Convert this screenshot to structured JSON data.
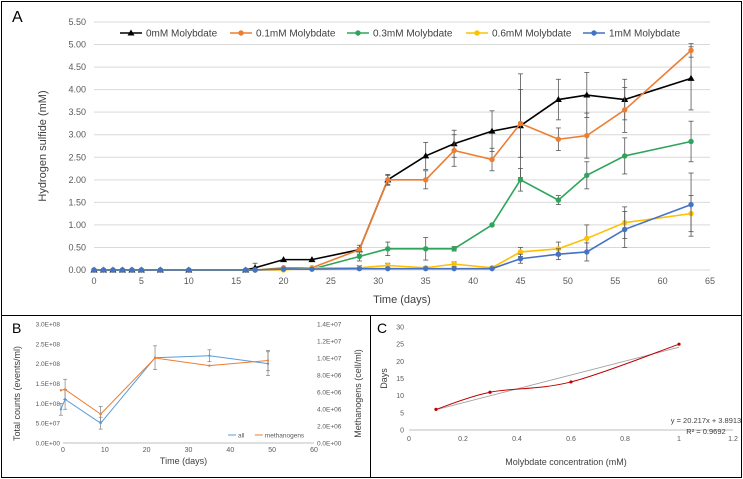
{
  "panels": {
    "A": {
      "letter": "A"
    },
    "B": {
      "letter": "B"
    },
    "C": {
      "letter": "C"
    }
  },
  "chart_data": [
    {
      "id": "A",
      "type": "line",
      "xlabel": "Time (days)",
      "ylabel": "Hydrogen sulfide (mM)",
      "xlim": [
        0,
        65
      ],
      "ylim": [
        0,
        5.5
      ],
      "xticks": [
        0,
        5,
        10,
        15,
        20,
        25,
        30,
        35,
        40,
        45,
        50,
        55,
        60,
        65
      ],
      "yticks": [
        0,
        0.5,
        1,
        1.5,
        2,
        2.5,
        3,
        3.5,
        4,
        4.5,
        5,
        5.5
      ],
      "ytick_labels": [
        "0.00",
        "0.50",
        "1.00",
        "1.50",
        "2.00",
        "2.50",
        "3.00",
        "3.50",
        "4.00",
        "4.50",
        "5.00",
        "5.50"
      ],
      "grid": "horizontal",
      "legend": "top",
      "series": [
        {
          "name": "0mM Molybdate",
          "color": "#000000",
          "marker": "triangle",
          "x": [
            0,
            1,
            2,
            3,
            4,
            5,
            7,
            10,
            16,
            17,
            20,
            23,
            28,
            31,
            35,
            38,
            42,
            45,
            49,
            52,
            56,
            63
          ],
          "y": [
            0,
            0,
            0,
            0,
            0,
            0,
            0,
            0,
            0,
            0.05,
            0.23,
            0.23,
            0.45,
            2.0,
            2.53,
            2.8,
            3.08,
            3.2,
            3.78,
            3.88,
            3.78,
            4.25
          ],
          "err": [
            0,
            0,
            0,
            0,
            0,
            0,
            0,
            0,
            0,
            0.1,
            0,
            0,
            0.1,
            0.1,
            0.3,
            0.3,
            0.45,
            1.15,
            0.45,
            0.5,
            0.45,
            0.7
          ]
        },
        {
          "name": "0.1mM Molybdate",
          "color": "#ED7D31",
          "marker": "circle",
          "x": [
            0,
            1,
            2,
            3,
            4,
            5,
            7,
            10,
            16,
            17,
            20,
            23,
            28,
            31,
            35,
            38,
            42,
            45,
            49,
            52,
            56,
            63
          ],
          "y": [
            0,
            0,
            0,
            0,
            0,
            0,
            0,
            0,
            0,
            0,
            0.05,
            0.05,
            0.45,
            2.0,
            2.0,
            2.65,
            2.45,
            3.25,
            2.9,
            2.98,
            3.55,
            4.87
          ],
          "err": [
            0,
            0,
            0,
            0,
            0,
            0,
            0,
            0,
            0,
            0,
            0,
            0,
            0.05,
            0.12,
            0.2,
            0.35,
            0.25,
            0.75,
            0.25,
            0.5,
            0.5,
            0.15
          ]
        },
        {
          "name": "0.3mM Molybdate",
          "color": "#2EA55A",
          "marker": "circle",
          "x": [
            0,
            1,
            2,
            3,
            4,
            5,
            7,
            10,
            16,
            17,
            20,
            23,
            28,
            31,
            35,
            38,
            42,
            45,
            49,
            52,
            56,
            63
          ],
          "y": [
            0,
            0,
            0,
            0,
            0,
            0,
            0,
            0,
            0,
            0,
            0.02,
            0.02,
            0.3,
            0.47,
            0.47,
            0.47,
            1.0,
            2.0,
            1.55,
            2.1,
            2.53,
            2.85
          ],
          "err": [
            0,
            0,
            0,
            0,
            0,
            0,
            0,
            0,
            0,
            0,
            0,
            0,
            0.1,
            0.15,
            0.25,
            0.05,
            0,
            0.25,
            0.1,
            0.3,
            0.4,
            0.45
          ]
        },
        {
          "name": "0.6mM Molybdate",
          "color": "#FFC000",
          "marker": "circle",
          "x": [
            0,
            1,
            2,
            3,
            4,
            5,
            7,
            10,
            16,
            17,
            20,
            23,
            28,
            31,
            35,
            38,
            42,
            45,
            49,
            52,
            56,
            63
          ],
          "y": [
            0,
            0,
            0,
            0,
            0,
            0,
            0,
            0,
            0,
            0,
            0,
            0.05,
            0.05,
            0.1,
            0.05,
            0.13,
            0.05,
            0.4,
            0.47,
            0.7,
            1.05,
            1.25
          ],
          "err": [
            0,
            0,
            0,
            0,
            0,
            0,
            0,
            0,
            0,
            0,
            0,
            0,
            0.05,
            0.05,
            0.03,
            0.05,
            0.03,
            0.1,
            0.15,
            0.3,
            0.35,
            0.4
          ]
        },
        {
          "name": "1mM Molybdate",
          "color": "#4472C4",
          "marker": "circle",
          "x": [
            0,
            1,
            2,
            3,
            4,
            5,
            7,
            10,
            16,
            17,
            20,
            23,
            28,
            31,
            35,
            38,
            42,
            45,
            49,
            52,
            56,
            63
          ],
          "y": [
            0,
            0,
            0,
            0,
            0,
            0,
            0,
            0,
            0,
            0,
            0.02,
            0.02,
            0.03,
            0.03,
            0.03,
            0.03,
            0.03,
            0.25,
            0.35,
            0.4,
            0.9,
            1.45
          ],
          "err": [
            0,
            0,
            0,
            0,
            0,
            0,
            0,
            0,
            0,
            0,
            0,
            0,
            0,
            0,
            0,
            0,
            0,
            0.1,
            0.12,
            0.2,
            0.4,
            0.7
          ]
        }
      ]
    },
    {
      "id": "B",
      "type": "line",
      "xlabel": "Time (days)",
      "ylabel": "Total counts (events/ml)",
      "y2label": "Methanogens (cell/ml)",
      "xlim": [
        0,
        60
      ],
      "ylim": [
        0,
        300000000
      ],
      "y2lim": [
        0,
        14000000
      ],
      "xticks": [
        0,
        10,
        20,
        30,
        40,
        50,
        60
      ],
      "yticks": [
        0,
        50000000,
        100000000,
        150000000,
        200000000,
        250000000,
        300000000
      ],
      "ytick_labels": [
        "0.0E+00",
        "5.0E+07",
        "1.0E+08",
        "1.5E+08",
        "2.0E+08",
        "2.5E+08",
        "3.0E+08"
      ],
      "y2ticks": [
        0,
        2000000,
        4000000,
        6000000,
        8000000,
        10000000,
        12000000,
        14000000
      ],
      "y2tick_labels": [
        "0.0E+00",
        "2.0E+06",
        "4.0E+06",
        "6.0E+06",
        "8.0E+06",
        "1.0E+07",
        "1.2E+07",
        "1.4E+07"
      ],
      "grid": "none",
      "legend": "bottom-right",
      "series": [
        {
          "name": "all",
          "color": "#5B9BD5",
          "axis": "left",
          "x": [
            -0.5,
            0.5,
            9,
            22,
            35,
            49
          ],
          "y": [
            85000000,
            110000000,
            50000000,
            215000000,
            220000000,
            200000000
          ],
          "err": [
            15000000,
            25000000,
            15000000,
            30000000,
            15000000,
            30000000
          ]
        },
        {
          "name": "methanogens",
          "color": "#ED7D31",
          "axis": "right",
          "x": [
            -0.5,
            0.5,
            9,
            22,
            35,
            49
          ],
          "y": [
            6200000,
            6300000,
            3400000,
            10000000,
            9100000,
            9700000
          ],
          "err": [
            0,
            1200000,
            900000,
            0,
            0,
            1200000
          ]
        }
      ]
    },
    {
      "id": "C",
      "type": "scatter",
      "xlabel": "Molybdate concentration (mM)",
      "ylabel": "Days",
      "xlim": [
        0,
        1.2
      ],
      "ylim": [
        0,
        30
      ],
      "xticks": [
        0,
        0.2,
        0.4,
        0.6,
        0.8,
        1,
        1.2
      ],
      "xtick_labels": [
        "0",
        "0.2",
        "0.4",
        "0.6",
        "0.8",
        "1",
        "1.2"
      ],
      "yticks": [
        0,
        5,
        10,
        15,
        20,
        25,
        30
      ],
      "grid": "none",
      "annotations": [
        "y = 20.217x + 3.8913",
        "R² = 0.9692"
      ],
      "points": {
        "x": [
          0.1,
          0.3,
          0.6,
          1.0
        ],
        "y": [
          6,
          11,
          14,
          25
        ],
        "color": "#C00000"
      },
      "trendline": {
        "slope": 20.217,
        "intercept": 3.8913,
        "color": "#A0A0A0"
      }
    }
  ]
}
